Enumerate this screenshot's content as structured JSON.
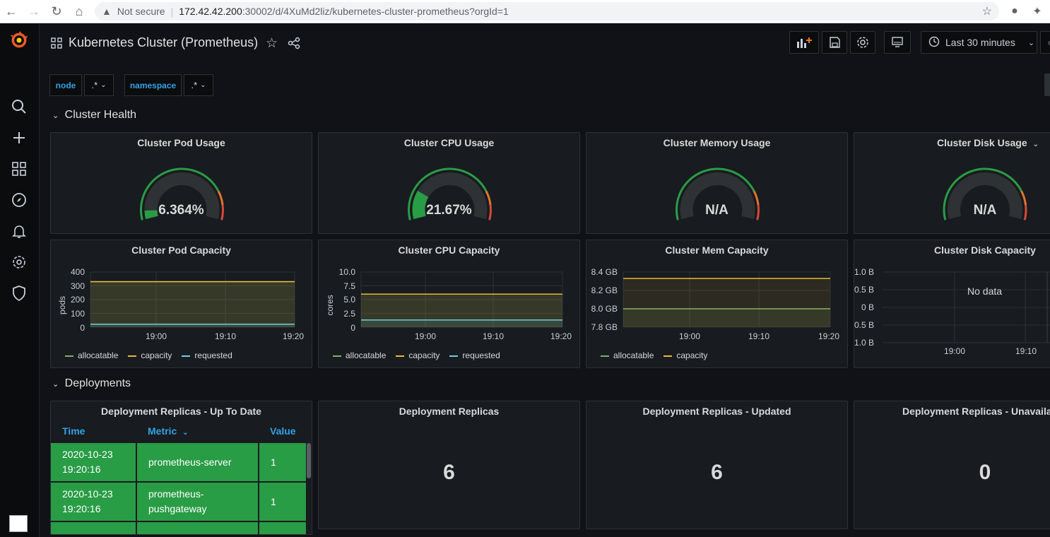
{
  "browser": {
    "security_label": "Not secure",
    "url_host": "172.42.42.200",
    "url_path": ":30002/d/4XuMd2liz/kubernetes-cluster-prometheus?orgId=1"
  },
  "dashboard": {
    "title": "Kubernetes Cluster (Prometheus)",
    "time_range": "Last 30 minutes"
  },
  "variables": [
    {
      "label": "node",
      "value": ".*"
    },
    {
      "label": "namespace",
      "value": ".*"
    }
  ],
  "rows": [
    {
      "title": "Cluster Health"
    },
    {
      "title": "Deployments"
    }
  ],
  "gauges": [
    {
      "title": "Cluster Pod Usage",
      "value": "6.364%",
      "fraction": 0.0636
    },
    {
      "title": "Cluster CPU Usage",
      "value": "21.67%",
      "fraction": 0.2167
    },
    {
      "title": "Cluster Memory Usage",
      "value": "N/A",
      "fraction": null
    },
    {
      "title": "Cluster Disk Usage",
      "value": "N/A",
      "fraction": null
    }
  ],
  "capacity_panels": [
    {
      "title": "Cluster Pod Capacity",
      "ylabel": "pods",
      "yticks": [
        "400",
        "300",
        "200",
        "100",
        "0"
      ],
      "xticks": [
        "19:00",
        "19:10",
        "19:20"
      ],
      "legend": [
        "allocatable",
        "capacity",
        "requested"
      ]
    },
    {
      "title": "Cluster CPU Capacity",
      "ylabel": "cores",
      "yticks": [
        "10.0",
        "7.5",
        "5.0",
        "2.5",
        "0"
      ],
      "xticks": [
        "19:00",
        "19:10",
        "19:20"
      ],
      "legend": [
        "allocatable",
        "capacity",
        "requested"
      ]
    },
    {
      "title": "Cluster Mem Capacity",
      "ylabel": "",
      "yticks": [
        "8.4 GB",
        "8.2 GB",
        "8.0 GB",
        "7.8 GB"
      ],
      "xticks": [
        "19:00",
        "19:10",
        "19:20"
      ],
      "legend": [
        "allocatable",
        "capacity"
      ]
    },
    {
      "title": "Cluster Disk Capacity",
      "ylabel": "",
      "yticks": [
        "1.0 B",
        "0.5 B",
        "0 B",
        "-0.5 B",
        "-1.0 B"
      ],
      "xticks": [
        "19:00",
        "19:10"
      ],
      "no_data": "No data",
      "legend": []
    }
  ],
  "chart_data": [
    {
      "type": "line",
      "title": "Cluster Pod Capacity",
      "ylabel": "pods",
      "ylim": [
        0,
        400
      ],
      "x": [
        "18:50",
        "19:20"
      ],
      "series": [
        {
          "name": "allocatable",
          "values": [
            330,
            330
          ]
        },
        {
          "name": "capacity",
          "values": [
            330,
            330
          ]
        },
        {
          "name": "requested",
          "values": [
            21,
            21
          ]
        }
      ],
      "colors": {
        "allocatable": "#7eb26d",
        "capacity": "#eab839",
        "requested": "#6ed0e0"
      }
    },
    {
      "type": "line",
      "title": "Cluster CPU Capacity",
      "ylabel": "cores",
      "ylim": [
        0,
        10
      ],
      "x": [
        "18:50",
        "19:20"
      ],
      "series": [
        {
          "name": "allocatable",
          "values": [
            6,
            6
          ]
        },
        {
          "name": "capacity",
          "values": [
            6,
            6
          ]
        },
        {
          "name": "requested",
          "values": [
            1.3,
            1.3
          ]
        }
      ],
      "colors": {
        "allocatable": "#7eb26d",
        "capacity": "#eab839",
        "requested": "#6ed0e0"
      }
    },
    {
      "type": "line",
      "title": "Cluster Mem Capacity",
      "ylim": [
        7.8,
        8.4
      ],
      "x": [
        "18:50",
        "19:20"
      ],
      "series": [
        {
          "name": "allocatable",
          "values": [
            8.0,
            8.0
          ]
        },
        {
          "name": "capacity",
          "values": [
            8.33,
            8.33
          ]
        }
      ],
      "colors": {
        "allocatable": "#7eb26d",
        "capacity": "#eab839"
      }
    }
  ],
  "stats": [
    {
      "title": "Deployment Replicas",
      "value": "6"
    },
    {
      "title": "Deployment Replicas - Updated",
      "value": "6"
    },
    {
      "title": "Deployment Replicas - Unavailable",
      "value": "0"
    }
  ],
  "table": {
    "title": "Deployment Replicas - Up To Date",
    "columns": [
      "Time",
      "Metric",
      "Value"
    ],
    "rows": [
      {
        "time_date": "2020-10-23",
        "time_clock": "19:20:16",
        "metric_1": "prometheus-server",
        "metric_2": "",
        "value": "1"
      },
      {
        "time_date": "2020-10-23",
        "time_clock": "19:20:16",
        "metric_1": "prometheus-",
        "metric_2": "pushgateway",
        "value": "1"
      }
    ]
  }
}
